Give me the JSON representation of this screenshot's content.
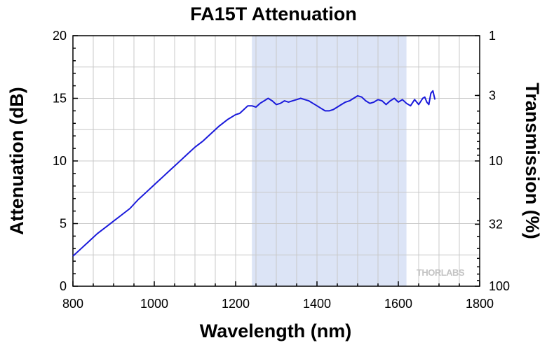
{
  "chart_data": {
    "type": "line",
    "title": "FA15T Attenuation",
    "xlabel": "Wavelength (nm)",
    "ylabel": "Attenuation (dB)",
    "y2label": "Transmission (%)",
    "xlim": [
      800,
      1800
    ],
    "ylim": [
      0,
      20
    ],
    "x_ticks": [
      "800",
      "1000",
      "1200",
      "1400",
      "1600",
      "1800"
    ],
    "y_ticks": [
      "0",
      "5",
      "10",
      "15",
      "20"
    ],
    "y2_scale": "log",
    "y2_ticks": [
      {
        "label": "1",
        "value": 1
      },
      {
        "label": "3",
        "value": 3
      },
      {
        "label": "10",
        "value": 10
      },
      {
        "label": "32",
        "value": 32
      },
      {
        "label": "100",
        "value": 100
      }
    ],
    "grid": true,
    "shaded_region": {
      "x_start": 1240,
      "x_end": 1620,
      "color": "#dce4f6"
    },
    "watermark": "THORLABS",
    "series": [
      {
        "color": "#1a1adb",
        "x": [
          800,
          820,
          840,
          860,
          880,
          900,
          920,
          940,
          960,
          980,
          1000,
          1020,
          1040,
          1060,
          1080,
          1100,
          1120,
          1140,
          1160,
          1180,
          1200,
          1210,
          1220,
          1230,
          1240,
          1250,
          1260,
          1270,
          1280,
          1290,
          1300,
          1310,
          1320,
          1330,
          1340,
          1350,
          1360,
          1370,
          1380,
          1390,
          1400,
          1410,
          1420,
          1430,
          1440,
          1450,
          1460,
          1470,
          1480,
          1490,
          1500,
          1510,
          1520,
          1530,
          1540,
          1550,
          1560,
          1570,
          1580,
          1590,
          1600,
          1610,
          1620,
          1630,
          1640,
          1650,
          1660,
          1665,
          1670,
          1675,
          1680,
          1685,
          1690
        ],
        "y": [
          2.4,
          3.0,
          3.6,
          4.2,
          4.7,
          5.2,
          5.7,
          6.2,
          6.9,
          7.5,
          8.1,
          8.7,
          9.3,
          9.9,
          10.5,
          11.1,
          11.6,
          12.2,
          12.8,
          13.3,
          13.7,
          13.8,
          14.1,
          14.4,
          14.4,
          14.3,
          14.6,
          14.8,
          15.0,
          14.8,
          14.5,
          14.6,
          14.8,
          14.7,
          14.8,
          14.9,
          15.0,
          14.9,
          14.8,
          14.6,
          14.4,
          14.2,
          14.0,
          14.0,
          14.1,
          14.3,
          14.5,
          14.7,
          14.8,
          15.0,
          15.2,
          15.1,
          14.8,
          14.6,
          14.7,
          14.9,
          14.8,
          14.5,
          14.8,
          15.0,
          14.7,
          14.9,
          14.6,
          14.4,
          14.9,
          14.5,
          15.0,
          15.1,
          14.7,
          14.5,
          15.4,
          15.6,
          14.9
        ]
      }
    ]
  }
}
